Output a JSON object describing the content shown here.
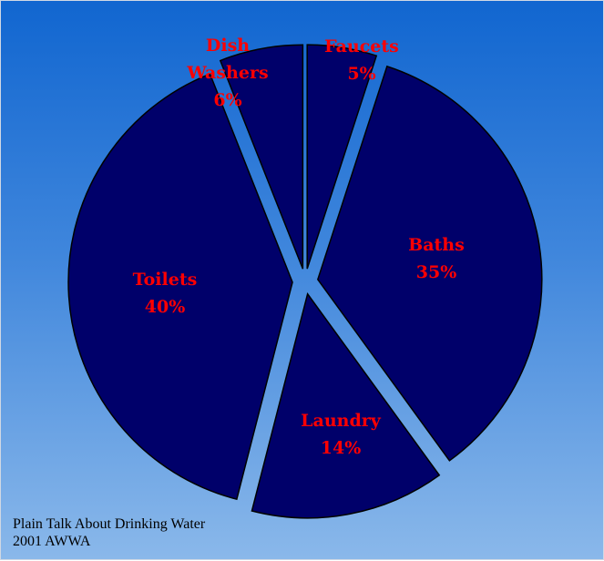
{
  "chart_data": {
    "type": "pie",
    "slices": [
      {
        "label_lines": [
          "Faucets",
          "5%"
        ],
        "value": 5
      },
      {
        "label_lines": [
          "Baths",
          "35%"
        ],
        "value": 35
      },
      {
        "label_lines": [
          "Laundry",
          "14%"
        ],
        "value": 14
      },
      {
        "label_lines": [
          "Toilets",
          "40%"
        ],
        "value": 40
      },
      {
        "label_lines": [
          "Dish",
          "Washers",
          "6%"
        ],
        "value": 6
      }
    ],
    "exploded": true,
    "start": "top, clockwise",
    "slice_color": "#00006a",
    "label_color": "#ff0000"
  },
  "source": {
    "line1": "Plain Talk About Drinking Water",
    "line2": "2001 AWWA"
  }
}
